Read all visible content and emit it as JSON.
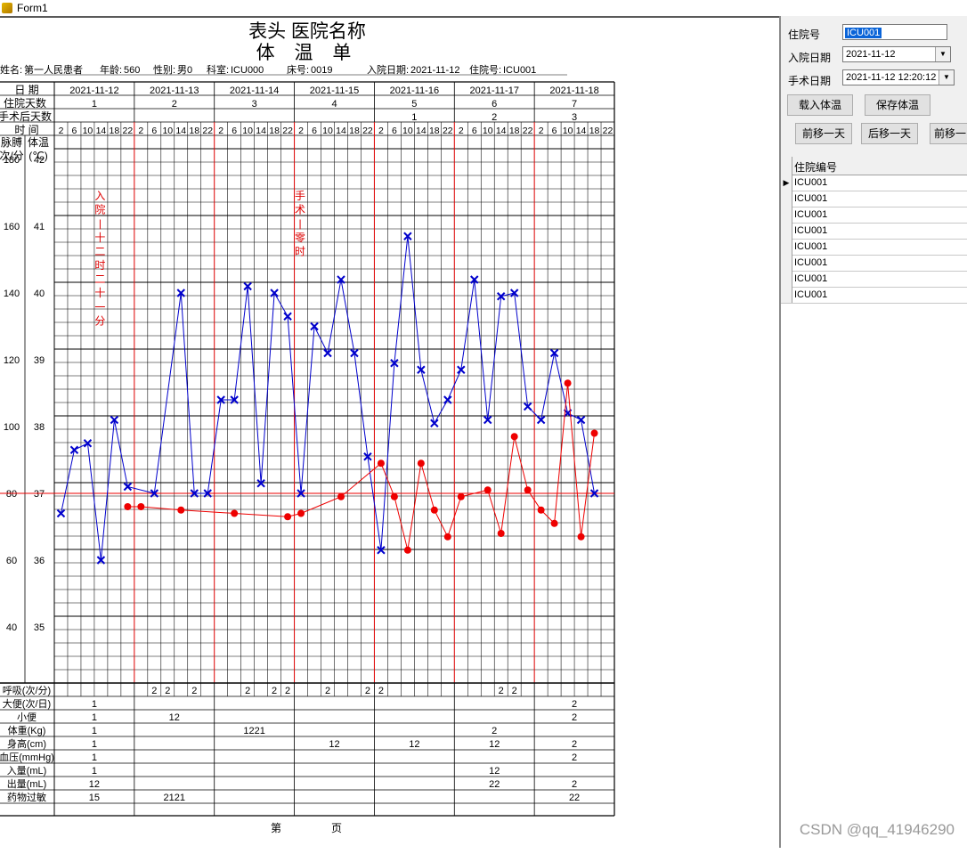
{
  "window": {
    "title": "Form1"
  },
  "sheet": {
    "title": "表头 医院名称",
    "subtitle": "体  温  单",
    "patient_fields": [
      {
        "label": "姓名:",
        "value": "第一人民患者"
      },
      {
        "label": "年龄:",
        "value": "560"
      },
      {
        "label": "性别:",
        "value": "男0"
      },
      {
        "label": "科室:",
        "value": "ICU000"
      },
      {
        "label": "床号:",
        "value": "0019"
      },
      {
        "label": "入院日期:",
        "value": "2021-11-12"
      },
      {
        "label": "住院号:",
        "value": "ICU001"
      }
    ],
    "header_labels": {
      "date": "日 期",
      "days_in": "住院天数",
      "days_post": "手术后天数",
      "time": "时 间",
      "pulse": "脉膊",
      "pulse_unit": "次/分",
      "temp": "体温",
      "temp_unit": "(℃)"
    },
    "dates": [
      "2021-11-12",
      "2021-11-13",
      "2021-11-14",
      "2021-11-15",
      "2021-11-16",
      "2021-11-17",
      "2021-11-18"
    ],
    "days_in_hospital": [
      "1",
      "2",
      "3",
      "4",
      "5",
      "6",
      "7"
    ],
    "days_post_op": [
      "",
      "",
      "",
      "",
      "1",
      "2",
      "3"
    ],
    "hours": [
      "2",
      "6",
      "10",
      "14",
      "18",
      "22"
    ],
    "pulse_ticks": [
      "180",
      "160",
      "140",
      "120",
      "100",
      "80",
      "60",
      "40"
    ],
    "temp_ticks": [
      "42",
      "41",
      "40",
      "39",
      "38",
      "37",
      "36",
      "35"
    ],
    "annotations": [
      {
        "text": "入院—十二时二十一分",
        "slot": 3
      },
      {
        "text": "手术—零时",
        "slot": 18
      }
    ],
    "bottom_rows": [
      {
        "label": "呼吸(次/分)",
        "cells": [
          {
            "slot": 7,
            "v": "2"
          },
          {
            "slot": 8,
            "v": "2"
          },
          {
            "slot": 10,
            "v": "2"
          },
          {
            "slot": 14,
            "v": "2"
          },
          {
            "slot": 16,
            "v": "2"
          },
          {
            "slot": 17,
            "v": "2"
          },
          {
            "slot": 20,
            "v": "2"
          },
          {
            "slot": 23,
            "v": "2"
          },
          {
            "slot": 24,
            "v": "2"
          },
          {
            "slot": 33,
            "v": "2"
          },
          {
            "slot": 34,
            "v": "2"
          }
        ]
      },
      {
        "label": "大便(次/日)",
        "values": [
          "1",
          "",
          "",
          "",
          "",
          "",
          "2"
        ]
      },
      {
        "label": "小便",
        "values": [
          "1",
          "12",
          "",
          "",
          "",
          "",
          "2"
        ]
      },
      {
        "label": "体重(Kg)",
        "values": [
          "1",
          "",
          "1221",
          "",
          "",
          "2",
          ""
        ]
      },
      {
        "label": "身高(cm)",
        "values": [
          "1",
          "",
          "",
          "12",
          "12",
          "12",
          "2"
        ]
      },
      {
        "label": "血压(mmHg)",
        "values": [
          "1",
          "",
          "",
          "",
          "",
          "",
          "2"
        ]
      },
      {
        "label": "入量(mL)",
        "values": [
          "1",
          "",
          "",
          "",
          "",
          "12",
          ""
        ]
      },
      {
        "label": "出量(mL)",
        "values": [
          "12",
          "",
          "",
          "",
          "",
          "22",
          "2"
        ]
      },
      {
        "label": "药物过敏",
        "values": [
          "15",
          "2121",
          "",
          "",
          "",
          "",
          "22"
        ]
      }
    ],
    "footer": {
      "prefix": "第",
      "suffix": "页"
    }
  },
  "chart_data": {
    "type": "line",
    "x_slots": 42,
    "ylim_pulse": [
      40,
      180
    ],
    "ylim_temp": [
      35,
      42
    ],
    "series": [
      {
        "name": "",
        "color": "#0000cc",
        "marker": "x",
        "axis": "pulse",
        "points": [
          [
            0,
            74
          ],
          [
            1,
            93
          ],
          [
            2,
            95
          ],
          [
            3,
            60
          ],
          [
            4,
            102
          ],
          [
            5,
            82
          ],
          [
            7,
            80
          ],
          [
            9,
            140
          ],
          [
            10,
            80
          ],
          [
            11,
            80
          ],
          [
            12,
            108
          ],
          [
            13,
            108
          ],
          [
            14,
            142
          ],
          [
            15,
            83
          ],
          [
            16,
            140
          ],
          [
            17,
            133
          ],
          [
            18,
            80
          ],
          [
            19,
            130
          ],
          [
            20,
            122
          ],
          [
            21,
            144
          ],
          [
            22,
            122
          ],
          [
            23,
            91
          ],
          [
            24,
            63
          ],
          [
            25,
            119
          ],
          [
            26,
            157
          ],
          [
            27,
            117
          ],
          [
            28,
            101
          ],
          [
            29,
            108
          ],
          [
            30,
            117
          ],
          [
            31,
            144
          ],
          [
            32,
            102
          ],
          [
            33,
            139
          ],
          [
            34,
            140
          ],
          [
            35,
            106
          ],
          [
            36,
            102
          ],
          [
            37,
            122
          ],
          [
            38,
            104
          ],
          [
            39,
            102
          ],
          [
            40,
            80
          ]
        ]
      },
      {
        "name": "",
        "color": "#ee0000",
        "marker": "dot",
        "axis": "temp",
        "points": [
          [
            5,
            36.8
          ],
          [
            6,
            36.8
          ],
          [
            9,
            36.75
          ],
          [
            13,
            36.7
          ],
          [
            17,
            36.65
          ],
          [
            18,
            36.7
          ],
          [
            21,
            36.95
          ],
          [
            24,
            37.45
          ],
          [
            25,
            36.95
          ],
          [
            26,
            36.15
          ],
          [
            27,
            37.45
          ],
          [
            28,
            36.75
          ],
          [
            29,
            36.35
          ],
          [
            30,
            36.95
          ],
          [
            32,
            37.05
          ],
          [
            33,
            36.4
          ],
          [
            34,
            37.85
          ],
          [
            35,
            37.05
          ],
          [
            36,
            36.75
          ],
          [
            37,
            36.55
          ],
          [
            38,
            38.65
          ],
          [
            39,
            36.35
          ],
          [
            40,
            37.9
          ]
        ]
      }
    ],
    "reference_line": {
      "axis": "temp",
      "value": 37,
      "color": "#ee0000"
    }
  },
  "panel": {
    "admission_no_label": "住院号",
    "admission_no_value": "ICU001",
    "admit_date_label": "入院日期",
    "admit_date_value": "2021-11-12",
    "surgery_date_label": "手术日期",
    "surgery_date_value": "2021-11-12 12:20:12",
    "load_button": "载入体温",
    "save_button": "保存体温",
    "prev_day_button": "前移一天",
    "next_day_button": "后移一天",
    "prev_day_button_2": "前移一",
    "grid_header": "住院编号",
    "grid_rows": [
      "ICU001",
      "ICU001",
      "ICU001",
      "ICU001",
      "ICU001",
      "ICU001",
      "ICU001",
      "ICU001"
    ]
  },
  "watermark": "CSDN @qq_41946290"
}
